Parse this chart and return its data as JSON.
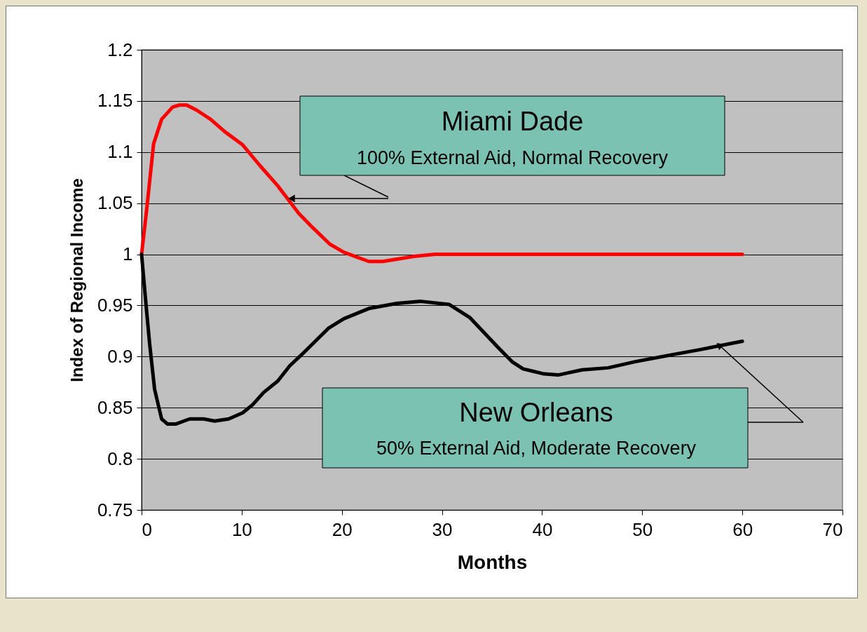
{
  "chart_data": {
    "type": "line",
    "xlabel": "Months",
    "ylabel": "Index of Regional Income",
    "xlim": [
      0,
      70
    ],
    "ylim": [
      0.75,
      1.2
    ],
    "xticks": [
      0,
      10,
      20,
      30,
      40,
      50,
      60,
      70
    ],
    "yticks": [
      0.75,
      0.8,
      0.85,
      0.9,
      0.95,
      1,
      1.05,
      1.1,
      1.15,
      1.2
    ],
    "grid": "y",
    "legend": false,
    "series": [
      {
        "color": "#ff0000",
        "x": [
          0,
          0.5,
          1.2,
          2,
          3.1,
          3.8,
          4.5,
          5.5,
          6.9,
          8.3,
          10.1,
          11.8,
          13.6,
          15.7,
          17.1,
          18.8,
          20.2,
          22.7,
          24.1,
          27.2,
          29.3,
          60
        ],
        "values": [
          1.0,
          1.043,
          1.108,
          1.132,
          1.144,
          1.146,
          1.146,
          1.141,
          1.132,
          1.12,
          1.107,
          1.087,
          1.067,
          1.04,
          1.026,
          1.01,
          1.002,
          0.993,
          0.993,
          0.998,
          1.0,
          1.0
        ]
      },
      {
        "color": "#000000",
        "x": [
          0,
          0.35,
          0.8,
          1.3,
          2,
          2.6,
          3.4,
          4.8,
          6.2,
          7.3,
          8.7,
          10.1,
          11.1,
          12.2,
          13.6,
          14.8,
          16,
          18.7,
          20.2,
          22.7,
          25.5,
          27.9,
          30.7,
          32.8,
          35.6,
          37,
          38.1,
          40.2,
          41.6,
          44,
          46.6,
          49.3,
          53.1,
          55.9,
          60
        ],
        "values": [
          1.0,
          0.961,
          0.913,
          0.868,
          0.839,
          0.834,
          0.834,
          0.839,
          0.839,
          0.837,
          0.839,
          0.845,
          0.853,
          0.865,
          0.876,
          0.891,
          0.902,
          0.928,
          0.937,
          0.947,
          0.952,
          0.954,
          0.951,
          0.938,
          0.909,
          0.895,
          0.888,
          0.883,
          0.882,
          0.887,
          0.889,
          0.895,
          0.902,
          0.907,
          0.915
        ]
      }
    ],
    "annotations": [
      "Miami Dade",
      "100% External Aid, Normal Recovery",
      "New Orleans",
      "50% External Aid, Moderate Recovery"
    ]
  }
}
